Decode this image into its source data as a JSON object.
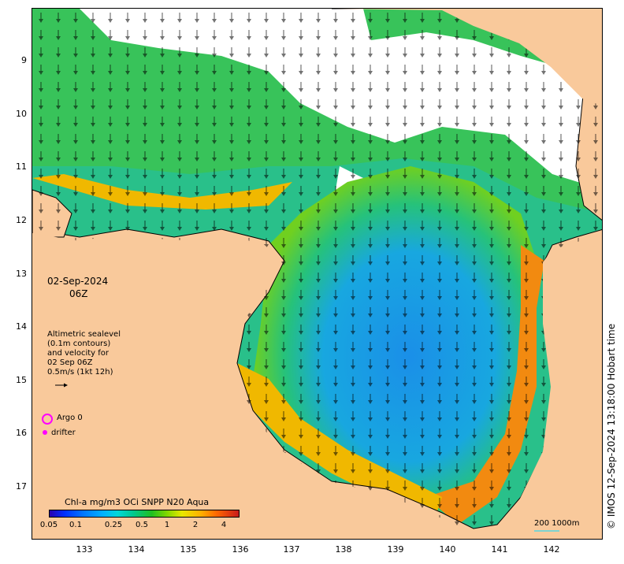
{
  "map": {
    "date_line1": "02-Sep-2024",
    "date_line2": "06Z",
    "altimetry_lines": [
      "Altimetric sealevel",
      "(0.1m contours)",
      "and velocity for",
      "02 Sep 06Z",
      "0.5m/s (1kt 12h)"
    ],
    "argo_label": "Argo 0",
    "drifter_label": "drifter",
    "argo_color": "#ff00ff",
    "colorbar_title": "Chl-a mg/m3 OCi SNPP N20 Aqua",
    "colorbar_ticks": [
      "0.05",
      "0.1",
      "0.25",
      "0.5",
      "1",
      "2",
      "4"
    ],
    "scale_label": "200  1000m",
    "credit": "© IMOS 12-Sep-2024 13:18:00 Hobart time",
    "y_axis_labels": [
      "9",
      "10",
      "11",
      "12",
      "13",
      "14",
      "15",
      "16",
      "17"
    ],
    "x_axis_labels": [
      "133",
      "134",
      "135",
      "136",
      "137",
      "138",
      "139",
      "140",
      "141",
      "142"
    ],
    "colors": {
      "land": "#f9c99b",
      "cloud_mask": "#ffffff",
      "coast": "#000000"
    }
  }
}
